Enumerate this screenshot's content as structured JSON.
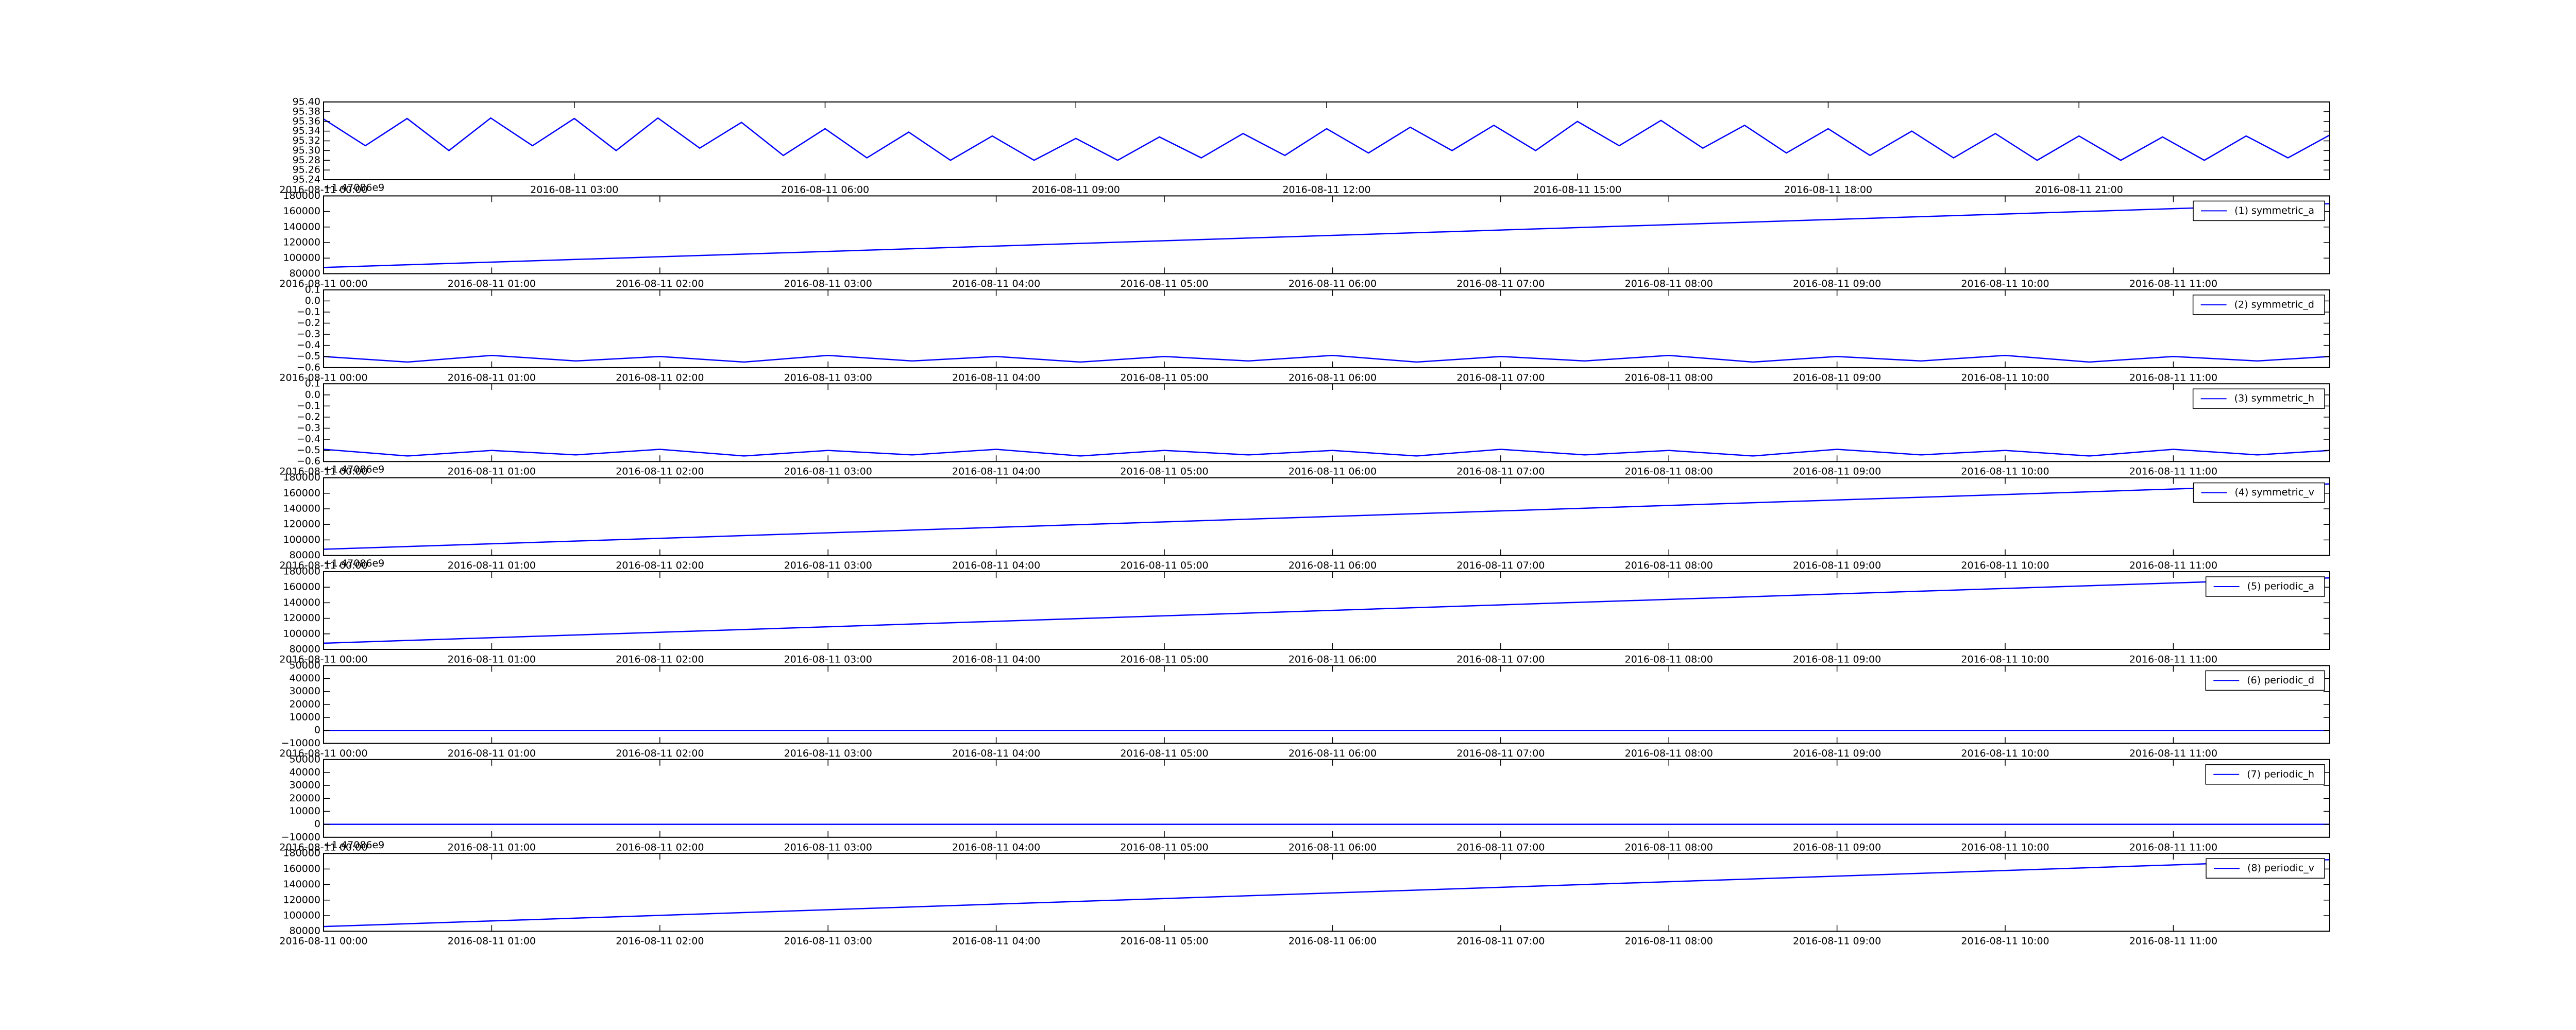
{
  "chart_data": [
    {
      "type": "line",
      "x": [
        0,
        0.5,
        1,
        1.5,
        2,
        2.5,
        3,
        3.5,
        4,
        4.5,
        5,
        5.5,
        6,
        6.5,
        7,
        7.5,
        8,
        8.5,
        9,
        9.5,
        10,
        10.5,
        11,
        11.5,
        12,
        12.5,
        13,
        13.5,
        14,
        14.5,
        15,
        15.5,
        16,
        16.5,
        17,
        17.5,
        18,
        18.5,
        19,
        19.5,
        20,
        20.5,
        21,
        21.5,
        22,
        22.5,
        23,
        23.5,
        24
      ],
      "series": [
        {
          "color": "#0000ff",
          "values": [
            95.365,
            95.31,
            95.366,
            95.3,
            95.367,
            95.31,
            95.366,
            95.3,
            95.367,
            95.305,
            95.358,
            95.29,
            95.345,
            95.285,
            95.338,
            95.28,
            95.33,
            95.28,
            95.325,
            95.28,
            95.328,
            95.285,
            95.335,
            95.29,
            95.345,
            95.295,
            95.348,
            95.3,
            95.352,
            95.3,
            95.36,
            95.31,
            95.362,
            95.305,
            95.352,
            95.295,
            95.345,
            95.29,
            95.34,
            95.285,
            95.335,
            95.28,
            95.33,
            95.28,
            95.328,
            95.28,
            95.33,
            95.285,
            95.332
          ]
        }
      ],
      "xlim": [
        0,
        24
      ],
      "xticks": [
        {
          "value": 0,
          "label": "2016-08-11 00:00"
        },
        {
          "value": 3,
          "label": "2016-08-11 03:00"
        },
        {
          "value": 6,
          "label": "2016-08-11 06:00"
        },
        {
          "value": 9,
          "label": "2016-08-11 09:00"
        },
        {
          "value": 12,
          "label": "2016-08-11 12:00"
        },
        {
          "value": 15,
          "label": "2016-08-11 15:00"
        },
        {
          "value": 18,
          "label": "2016-08-11 18:00"
        },
        {
          "value": 21,
          "label": "2016-08-11 21:00"
        }
      ],
      "ylim": [
        95.24,
        95.4
      ],
      "yticks": [
        95.24,
        95.26,
        95.28,
        {
          "value": 95.3,
          "label": "95.30"
        },
        95.32,
        95.34,
        95.36,
        95.38,
        {
          "value": 95.4,
          "label": "95.40"
        }
      ]
    },
    {
      "type": "line",
      "offset_text": "+1.47086e9",
      "legend": "upper right",
      "x": [
        0,
        11.93
      ],
      "series": [
        {
          "name": "(1) symmetric_a",
          "color": "#0000ff",
          "values": [
            88000,
            170000
          ]
        }
      ],
      "xlim": [
        0,
        11.93
      ],
      "xticks": [
        {
          "value": 0,
          "label": "2016-08-11 00:00"
        },
        {
          "value": 1,
          "label": "2016-08-11 01:00"
        },
        {
          "value": 2,
          "label": "2016-08-11 02:00"
        },
        {
          "value": 3,
          "label": "2016-08-11 03:00"
        },
        {
          "value": 4,
          "label": "2016-08-11 04:00"
        },
        {
          "value": 5,
          "label": "2016-08-11 05:00"
        },
        {
          "value": 6,
          "label": "2016-08-11 06:00"
        },
        {
          "value": 7,
          "label": "2016-08-11 07:00"
        },
        {
          "value": 8,
          "label": "2016-08-11 08:00"
        },
        {
          "value": 9,
          "label": "2016-08-11 09:00"
        },
        {
          "value": 10,
          "label": "2016-08-11 10:00"
        },
        {
          "value": 11,
          "label": "2016-08-11 11:00"
        }
      ],
      "ylim": [
        80000,
        180000
      ],
      "yticks": [
        80000,
        100000,
        120000,
        140000,
        160000,
        180000
      ]
    },
    {
      "type": "line",
      "legend": "upper right",
      "x": [
        0,
        0.5,
        1,
        1.5,
        2,
        2.5,
        3,
        3.5,
        4,
        4.5,
        5,
        5.5,
        6,
        6.5,
        7,
        7.5,
        8,
        8.5,
        9,
        9.5,
        10,
        10.5,
        11,
        11.5,
        11.93
      ],
      "series": [
        {
          "name": "(2) symmetric_d",
          "color": "#0000ff",
          "values": [
            -0.5,
            -0.55,
            -0.49,
            -0.54,
            -0.5,
            -0.55,
            -0.49,
            -0.54,
            -0.5,
            -0.55,
            -0.5,
            -0.54,
            -0.49,
            -0.55,
            -0.5,
            -0.54,
            -0.49,
            -0.55,
            -0.5,
            -0.54,
            -0.49,
            -0.55,
            -0.5,
            -0.54,
            -0.5
          ]
        }
      ],
      "xlim": [
        0,
        11.93
      ],
      "xticks": [
        {
          "value": 0,
          "label": "2016-08-11 00:00"
        },
        {
          "value": 1,
          "label": "2016-08-11 01:00"
        },
        {
          "value": 2,
          "label": "2016-08-11 02:00"
        },
        {
          "value": 3,
          "label": "2016-08-11 03:00"
        },
        {
          "value": 4,
          "label": "2016-08-11 04:00"
        },
        {
          "value": 5,
          "label": "2016-08-11 05:00"
        },
        {
          "value": 6,
          "label": "2016-08-11 06:00"
        },
        {
          "value": 7,
          "label": "2016-08-11 07:00"
        },
        {
          "value": 8,
          "label": "2016-08-11 08:00"
        },
        {
          "value": 9,
          "label": "2016-08-11 09:00"
        },
        {
          "value": 10,
          "label": "2016-08-11 10:00"
        },
        {
          "value": 11,
          "label": "2016-08-11 11:00"
        }
      ],
      "ylim": [
        -0.6,
        0.1
      ],
      "yticks": [
        {
          "value": -0.6,
          "label": "−0.6"
        },
        {
          "value": -0.5,
          "label": "−0.5"
        },
        {
          "value": -0.4,
          "label": "−0.4"
        },
        {
          "value": -0.3,
          "label": "−0.3"
        },
        {
          "value": -0.2,
          "label": "−0.2"
        },
        {
          "value": -0.1,
          "label": "−0.1"
        },
        {
          "value": 0,
          "label": "0.0"
        },
        0.1
      ]
    },
    {
      "type": "line",
      "legend": "upper right",
      "x": [
        0,
        0.5,
        1,
        1.5,
        2,
        2.5,
        3,
        3.5,
        4,
        4.5,
        5,
        5.5,
        6,
        6.5,
        7,
        7.5,
        8,
        8.5,
        9,
        9.5,
        10,
        10.5,
        11,
        11.5,
        11.93
      ],
      "series": [
        {
          "name": "(3) symmetric_h",
          "color": "#0000ff",
          "values": [
            -0.49,
            -0.55,
            -0.5,
            -0.54,
            -0.49,
            -0.55,
            -0.5,
            -0.54,
            -0.49,
            -0.55,
            -0.5,
            -0.54,
            -0.5,
            -0.55,
            -0.49,
            -0.54,
            -0.5,
            -0.55,
            -0.49,
            -0.54,
            -0.5,
            -0.55,
            -0.49,
            -0.54,
            -0.5
          ]
        }
      ],
      "xlim": [
        0,
        11.93
      ],
      "xticks": [
        {
          "value": 0,
          "label": "2016-08-11 00:00"
        },
        {
          "value": 1,
          "label": "2016-08-11 01:00"
        },
        {
          "value": 2,
          "label": "2016-08-11 02:00"
        },
        {
          "value": 3,
          "label": "2016-08-11 03:00"
        },
        {
          "value": 4,
          "label": "2016-08-11 04:00"
        },
        {
          "value": 5,
          "label": "2016-08-11 05:00"
        },
        {
          "value": 6,
          "label": "2016-08-11 06:00"
        },
        {
          "value": 7,
          "label": "2016-08-11 07:00"
        },
        {
          "value": 8,
          "label": "2016-08-11 08:00"
        },
        {
          "value": 9,
          "label": "2016-08-11 09:00"
        },
        {
          "value": 10,
          "label": "2016-08-11 10:00"
        },
        {
          "value": 11,
          "label": "2016-08-11 11:00"
        }
      ],
      "ylim": [
        -0.6,
        0.1
      ],
      "yticks": [
        {
          "value": -0.6,
          "label": "−0.6"
        },
        {
          "value": -0.5,
          "label": "−0.5"
        },
        {
          "value": -0.4,
          "label": "−0.4"
        },
        {
          "value": -0.3,
          "label": "−0.3"
        },
        {
          "value": -0.2,
          "label": "−0.2"
        },
        {
          "value": -0.1,
          "label": "−0.1"
        },
        {
          "value": 0,
          "label": "0.0"
        },
        0.1
      ]
    },
    {
      "type": "line",
      "offset_text": "+1.47086e9",
      "legend": "upper right",
      "x": [
        0,
        11.93
      ],
      "series": [
        {
          "name": "(4) symmetric_v",
          "color": "#0000ff",
          "values": [
            88000,
            172000
          ]
        }
      ],
      "xlim": [
        0,
        11.93
      ],
      "xticks": [
        {
          "value": 0,
          "label": "2016-08-11 00:00"
        },
        {
          "value": 1,
          "label": "2016-08-11 01:00"
        },
        {
          "value": 2,
          "label": "2016-08-11 02:00"
        },
        {
          "value": 3,
          "label": "2016-08-11 03:00"
        },
        {
          "value": 4,
          "label": "2016-08-11 04:00"
        },
        {
          "value": 5,
          "label": "2016-08-11 05:00"
        },
        {
          "value": 6,
          "label": "2016-08-11 06:00"
        },
        {
          "value": 7,
          "label": "2016-08-11 07:00"
        },
        {
          "value": 8,
          "label": "2016-08-11 08:00"
        },
        {
          "value": 9,
          "label": "2016-08-11 09:00"
        },
        {
          "value": 10,
          "label": "2016-08-11 10:00"
        },
        {
          "value": 11,
          "label": "2016-08-11 11:00"
        }
      ],
      "ylim": [
        80000,
        180000
      ],
      "yticks": [
        80000,
        100000,
        120000,
        140000,
        160000,
        180000
      ]
    },
    {
      "type": "line",
      "offset_text": "+1.47086e9",
      "legend": "upper right",
      "x": [
        0,
        11.93
      ],
      "series": [
        {
          "name": "(5) periodic_a",
          "color": "#0000ff",
          "values": [
            88000,
            172000
          ]
        }
      ],
      "xlim": [
        0,
        11.93
      ],
      "xticks": [
        {
          "value": 0,
          "label": "2016-08-11 00:00"
        },
        {
          "value": 1,
          "label": "2016-08-11 01:00"
        },
        {
          "value": 2,
          "label": "2016-08-11 02:00"
        },
        {
          "value": 3,
          "label": "2016-08-11 03:00"
        },
        {
          "value": 4,
          "label": "2016-08-11 04:00"
        },
        {
          "value": 5,
          "label": "2016-08-11 05:00"
        },
        {
          "value": 6,
          "label": "2016-08-11 06:00"
        },
        {
          "value": 7,
          "label": "2016-08-11 07:00"
        },
        {
          "value": 8,
          "label": "2016-08-11 08:00"
        },
        {
          "value": 9,
          "label": "2016-08-11 09:00"
        },
        {
          "value": 10,
          "label": "2016-08-11 10:00"
        },
        {
          "value": 11,
          "label": "2016-08-11 11:00"
        }
      ],
      "ylim": [
        80000,
        180000
      ],
      "yticks": [
        80000,
        100000,
        120000,
        140000,
        160000,
        180000
      ]
    },
    {
      "type": "line",
      "legend": "upper right",
      "x": [
        0,
        11.93
      ],
      "series": [
        {
          "name": "(6) periodic_d",
          "color": "#0000ff",
          "values": [
            0,
            0
          ]
        }
      ],
      "xlim": [
        0,
        11.93
      ],
      "xticks": [
        {
          "value": 0,
          "label": "2016-08-11 00:00"
        },
        {
          "value": 1,
          "label": "2016-08-11 01:00"
        },
        {
          "value": 2,
          "label": "2016-08-11 02:00"
        },
        {
          "value": 3,
          "label": "2016-08-11 03:00"
        },
        {
          "value": 4,
          "label": "2016-08-11 04:00"
        },
        {
          "value": 5,
          "label": "2016-08-11 05:00"
        },
        {
          "value": 6,
          "label": "2016-08-11 06:00"
        },
        {
          "value": 7,
          "label": "2016-08-11 07:00"
        },
        {
          "value": 8,
          "label": "2016-08-11 08:00"
        },
        {
          "value": 9,
          "label": "2016-08-11 09:00"
        },
        {
          "value": 10,
          "label": "2016-08-11 10:00"
        },
        {
          "value": 11,
          "label": "2016-08-11 11:00"
        }
      ],
      "ylim": [
        -10000,
        50000
      ],
      "yticks": [
        {
          "value": -10000,
          "label": "−10000"
        },
        0,
        10000,
        20000,
        30000,
        40000,
        50000
      ]
    },
    {
      "type": "line",
      "legend": "upper right",
      "x": [
        0,
        11.93
      ],
      "series": [
        {
          "name": "(7) periodic_h",
          "color": "#0000ff",
          "values": [
            0,
            0
          ]
        }
      ],
      "xlim": [
        0,
        11.93
      ],
      "xticks": [
        {
          "value": 0,
          "label": "2016-08-11 00:00"
        },
        {
          "value": 1,
          "label": "2016-08-11 01:00"
        },
        {
          "value": 2,
          "label": "2016-08-11 02:00"
        },
        {
          "value": 3,
          "label": "2016-08-11 03:00"
        },
        {
          "value": 4,
          "label": "2016-08-11 04:00"
        },
        {
          "value": 5,
          "label": "2016-08-11 05:00"
        },
        {
          "value": 6,
          "label": "2016-08-11 06:00"
        },
        {
          "value": 7,
          "label": "2016-08-11 07:00"
        },
        {
          "value": 8,
          "label": "2016-08-11 08:00"
        },
        {
          "value": 9,
          "label": "2016-08-11 09:00"
        },
        {
          "value": 10,
          "label": "2016-08-11 10:00"
        },
        {
          "value": 11,
          "label": "2016-08-11 11:00"
        }
      ],
      "ylim": [
        -10000,
        50000
      ],
      "yticks": [
        {
          "value": -10000,
          "label": "−10000"
        },
        0,
        10000,
        20000,
        30000,
        40000,
        50000
      ]
    },
    {
      "type": "line",
      "offset_text": "+1.47086e9",
      "legend": "upper right",
      "x": [
        0,
        11.93
      ],
      "series": [
        {
          "name": "(8) periodic_v",
          "color": "#0000ff",
          "values": [
            86000,
            172000
          ]
        }
      ],
      "xlim": [
        0,
        11.93
      ],
      "xticks": [
        {
          "value": 0,
          "label": "2016-08-11 00:00"
        },
        {
          "value": 1,
          "label": "2016-08-11 01:00"
        },
        {
          "value": 2,
          "label": "2016-08-11 02:00"
        },
        {
          "value": 3,
          "label": "2016-08-11 03:00"
        },
        {
          "value": 4,
          "label": "2016-08-11 04:00"
        },
        {
          "value": 5,
          "label": "2016-08-11 05:00"
        },
        {
          "value": 6,
          "label": "2016-08-11 06:00"
        },
        {
          "value": 7,
          "label": "2016-08-11 07:00"
        },
        {
          "value": 8,
          "label": "2016-08-11 08:00"
        },
        {
          "value": 9,
          "label": "2016-08-11 09:00"
        },
        {
          "value": 10,
          "label": "2016-08-11 10:00"
        },
        {
          "value": 11,
          "label": "2016-08-11 11:00"
        }
      ],
      "ylim": [
        80000,
        180000
      ],
      "yticks": [
        80000,
        100000,
        120000,
        140000,
        160000,
        180000
      ]
    }
  ]
}
